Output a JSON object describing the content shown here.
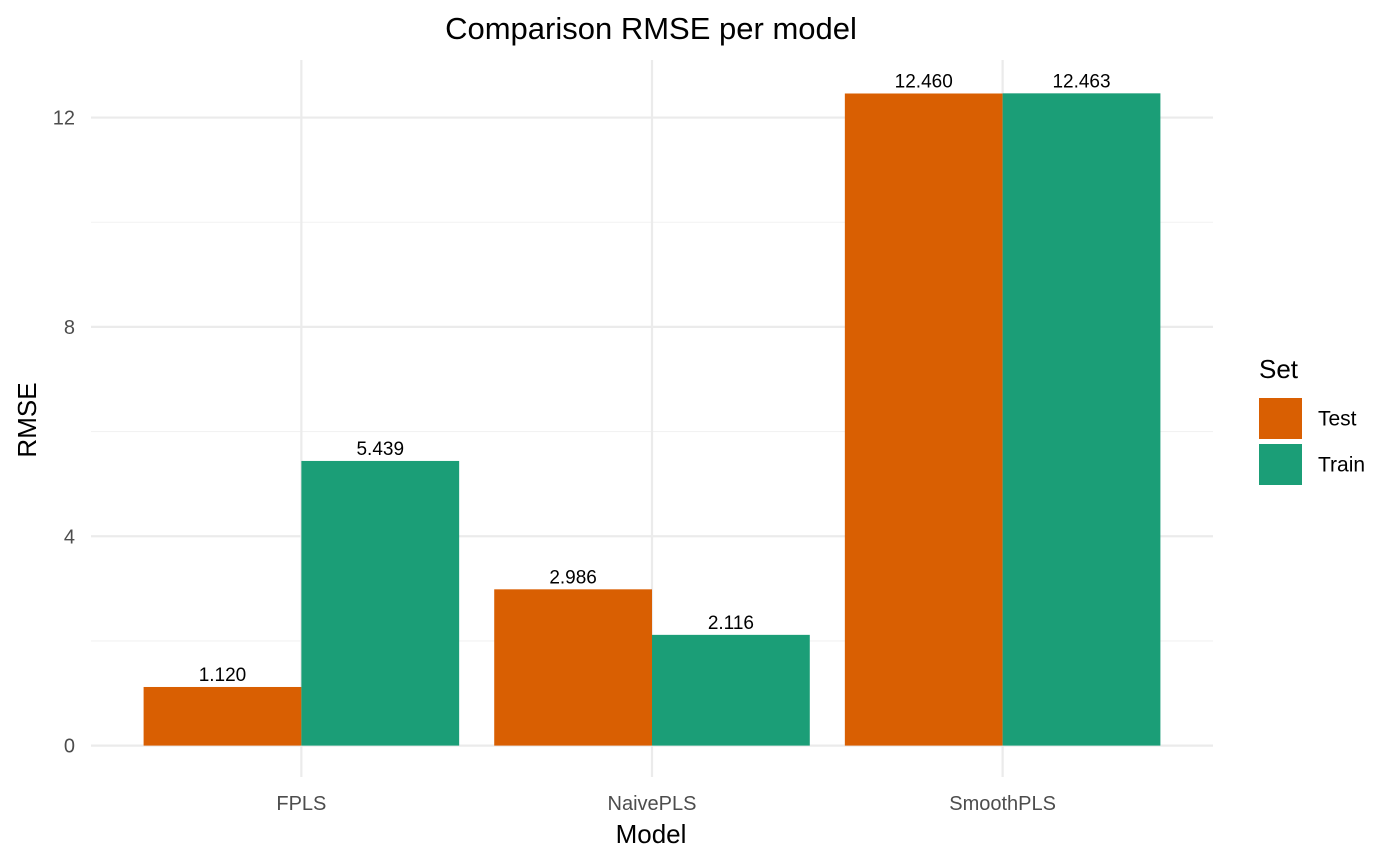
{
  "chart_data": {
    "type": "bar",
    "title": "Comparison RMSE per model",
    "xlabel": "Model",
    "ylabel": "RMSE",
    "categories": [
      "FPLS",
      "NaivePLS",
      "SmoothPLS"
    ],
    "series": [
      {
        "name": "Test",
        "color": "#D95F02",
        "values": [
          1.12,
          2.986,
          12.46
        ],
        "labels": [
          "1.120",
          "2.986",
          "12.460"
        ]
      },
      {
        "name": "Train",
        "color": "#1B9E77",
        "values": [
          5.439,
          2.116,
          12.463
        ],
        "labels": [
          "5.439",
          "2.116",
          "12.463"
        ]
      }
    ],
    "ylim": [
      -0.6,
      13.1
    ],
    "yticks": [
      0,
      4,
      8,
      12
    ],
    "yticks_minor": [
      2,
      6,
      10
    ],
    "grid": true,
    "legend": {
      "title": "Set",
      "position": "right"
    }
  }
}
